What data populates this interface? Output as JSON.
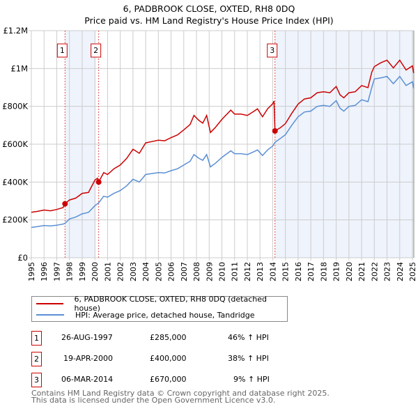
{
  "title": "6, PADBROOK CLOSE, OXTED, RH8 0DQ",
  "subtitle": "Price paid vs. HM Land Registry's House Price Index (HPI)",
  "colors": {
    "property": "#cc0000",
    "hpi": "#5b8fd4",
    "shade": "#eef3fc",
    "grid": "#cccccc"
  },
  "chart_data": {
    "type": "line",
    "title": "6, PADBROOK CLOSE, OXTED, RH8 0DQ",
    "xlim": [
      1995,
      2025.1
    ],
    "ylim": [
      0,
      1200000
    ],
    "x_ticks": [
      "1995",
      "1996",
      "1997",
      "1998",
      "1999",
      "2000",
      "2001",
      "2002",
      "2003",
      "2004",
      "2005",
      "2006",
      "2007",
      "2008",
      "2009",
      "2010",
      "2011",
      "2012",
      "2013",
      "2014",
      "2015",
      "2016",
      "2017",
      "2018",
      "2019",
      "2020",
      "2021",
      "2022",
      "2023",
      "2024",
      "2025"
    ],
    "y_ticks": [
      {
        "v": 0,
        "label": "£0"
      },
      {
        "v": 200000,
        "label": "£200K"
      },
      {
        "v": 400000,
        "label": "£400K"
      },
      {
        "v": 600000,
        "label": "£600K"
      },
      {
        "v": 800000,
        "label": "£800K"
      },
      {
        "v": 1000000,
        "label": "£1M"
      },
      {
        "v": 1200000,
        "label": "£1.2M"
      }
    ],
    "grid": true,
    "series": [
      {
        "name": "6, PADBROOK CLOSE, OXTED, RH8 0DQ (detached house)",
        "color": "#cc0000",
        "x": [
          1995.0,
          1995.5,
          1996.0,
          1996.5,
          1997.0,
          1997.5,
          1997.65,
          1998.0,
          1998.5,
          1999.0,
          1999.5,
          2000.0,
          2000.2,
          2000.3,
          2000.7,
          2001.0,
          2001.5,
          2002.0,
          2002.5,
          2003.0,
          2003.5,
          2004.0,
          2004.5,
          2005.0,
          2005.5,
          2006.0,
          2006.5,
          2007.0,
          2007.5,
          2007.8,
          2008.2,
          2008.5,
          2008.8,
          2009.1,
          2009.5,
          2010.0,
          2010.7,
          2011.0,
          2011.5,
          2012.0,
          2012.5,
          2012.8,
          2013.2,
          2013.6,
          2014.0,
          2014.1,
          2014.18,
          2014.6,
          2015.0,
          2015.5,
          2016.0,
          2016.5,
          2017.0,
          2017.5,
          2018.0,
          2018.5,
          2019.0,
          2019.3,
          2019.6,
          2020.0,
          2020.5,
          2021.0,
          2021.5,
          2021.8,
          2022.0,
          2022.5,
          2023.0,
          2023.5,
          2024.0,
          2024.5,
          2025.0,
          2025.1
        ],
        "values": [
          240000,
          245000,
          252000,
          248000,
          255000,
          265000,
          285000,
          305000,
          315000,
          340000,
          345000,
          410000,
          420000,
          400000,
          450000,
          440000,
          470000,
          490000,
          525000,
          573000,
          552000,
          607000,
          614000,
          621000,
          618000,
          635000,
          649000,
          676000,
          704000,
          752000,
          725000,
          711000,
          752000,
          662000,
          690000,
          731000,
          780000,
          759000,
          759000,
          752000,
          773000,
          787000,
          745000,
          787000,
          814000,
          828000,
          670000,
          687000,
          709000,
          763000,
          812000,
          839000,
          845000,
          872000,
          877000,
          872000,
          905000,
          861000,
          845000,
          872000,
          877000,
          910000,
          899000,
          981000,
          1010000,
          1030000,
          1044000,
          1003000,
          1044000,
          992000,
          1014000,
          976000
        ]
      },
      {
        "name": "HPI: Average price, detached house, Tandridge",
        "color": "#5b8fd4",
        "x": [
          1995.0,
          1995.5,
          1996.0,
          1996.5,
          1997.0,
          1997.5,
          1997.65,
          1998.0,
          1998.5,
          1999.0,
          1999.5,
          2000.0,
          2000.3,
          2000.7,
          2001.0,
          2001.5,
          2002.0,
          2002.5,
          2003.0,
          2003.5,
          2004.0,
          2004.5,
          2005.0,
          2005.5,
          2006.0,
          2006.5,
          2007.0,
          2007.5,
          2007.8,
          2008.2,
          2008.5,
          2008.8,
          2009.1,
          2009.5,
          2010.0,
          2010.7,
          2011.0,
          2011.5,
          2012.0,
          2012.5,
          2012.8,
          2013.2,
          2013.6,
          2014.0,
          2014.18,
          2014.6,
          2015.0,
          2015.5,
          2016.0,
          2016.5,
          2017.0,
          2017.5,
          2018.0,
          2018.5,
          2019.0,
          2019.3,
          2019.6,
          2020.0,
          2020.5,
          2021.0,
          2021.5,
          2021.8,
          2022.0,
          2022.5,
          2023.0,
          2023.5,
          2024.0,
          2024.5,
          2025.0,
          2025.1
        ],
        "values": [
          160000,
          165000,
          170000,
          168000,
          172000,
          178000,
          182000,
          205000,
          215000,
          232000,
          240000,
          275000,
          290000,
          325000,
          320000,
          340000,
          355000,
          380000,
          415000,
          400000,
          440000,
          445000,
          450000,
          448000,
          460000,
          470000,
          490000,
          510000,
          545000,
          525000,
          515000,
          545000,
          480000,
          500000,
          530000,
          565000,
          550000,
          550000,
          545000,
          560000,
          570000,
          540000,
          570000,
          590000,
          610000,
          630000,
          650000,
          700000,
          745000,
          770000,
          775000,
          800000,
          805000,
          800000,
          830000,
          790000,
          775000,
          800000,
          805000,
          835000,
          825000,
          900000,
          945000,
          950000,
          958000,
          920000,
          958000,
          910000,
          930000,
          895000
        ]
      }
    ],
    "transactions": [
      {
        "id": "1",
        "x": 1997.65,
        "value": 285000,
        "date": "26-AUG-1997",
        "price": "£285,000",
        "hpi": "46% ↑ HPI"
      },
      {
        "id": "2",
        "x": 2000.3,
        "value": 400000,
        "date": "19-APR-2000",
        "price": "£400,000",
        "hpi": "38% ↑ HPI"
      },
      {
        "id": "3",
        "x": 2014.18,
        "value": 670000,
        "date": "06-MAR-2014",
        "price": "£670,000",
        "hpi": "9% ↑ HPI"
      }
    ],
    "legend_position": "below"
  },
  "legend": {
    "property": "6, PADBROOK CLOSE, OXTED, RH8 0DQ (detached house)",
    "hpi": "HPI: Average price, detached house, Tandridge"
  },
  "footer": {
    "line1": "Contains HM Land Registry data © Crown copyright and database right 2025.",
    "line2": "This data is licensed under the Open Government Licence v3.0."
  }
}
